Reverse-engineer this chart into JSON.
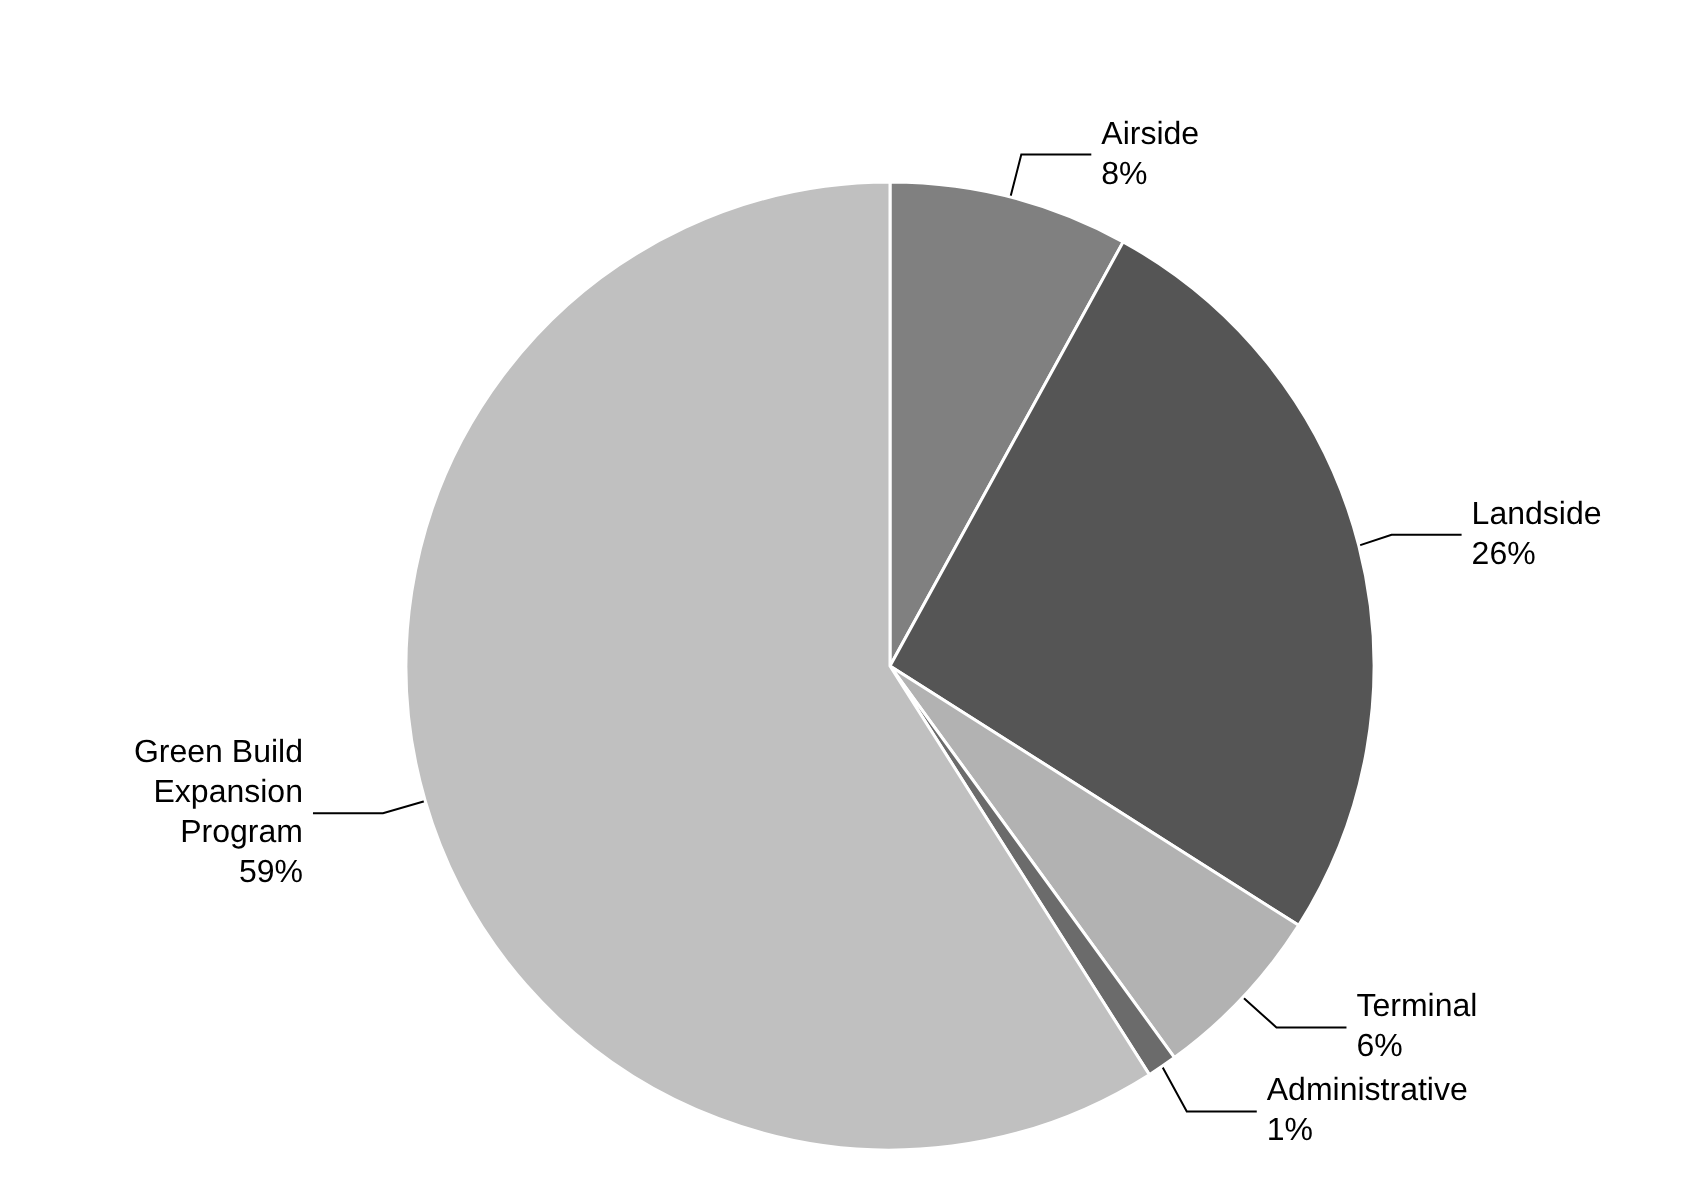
{
  "chart_data": {
    "type": "pie",
    "categories": [
      "Airside",
      "Landside",
      "Terminal",
      "Administrative",
      "Green Build Expansion Program"
    ],
    "values": [
      8,
      26,
      6,
      1,
      59
    ],
    "value_labels": [
      "8%",
      "26%",
      "6%",
      "1%",
      "59%"
    ],
    "colors": [
      "#808080",
      "#555555",
      "#b2b2b2",
      "#6b6b6b",
      "#c0c0c0"
    ],
    "legend": false
  }
}
